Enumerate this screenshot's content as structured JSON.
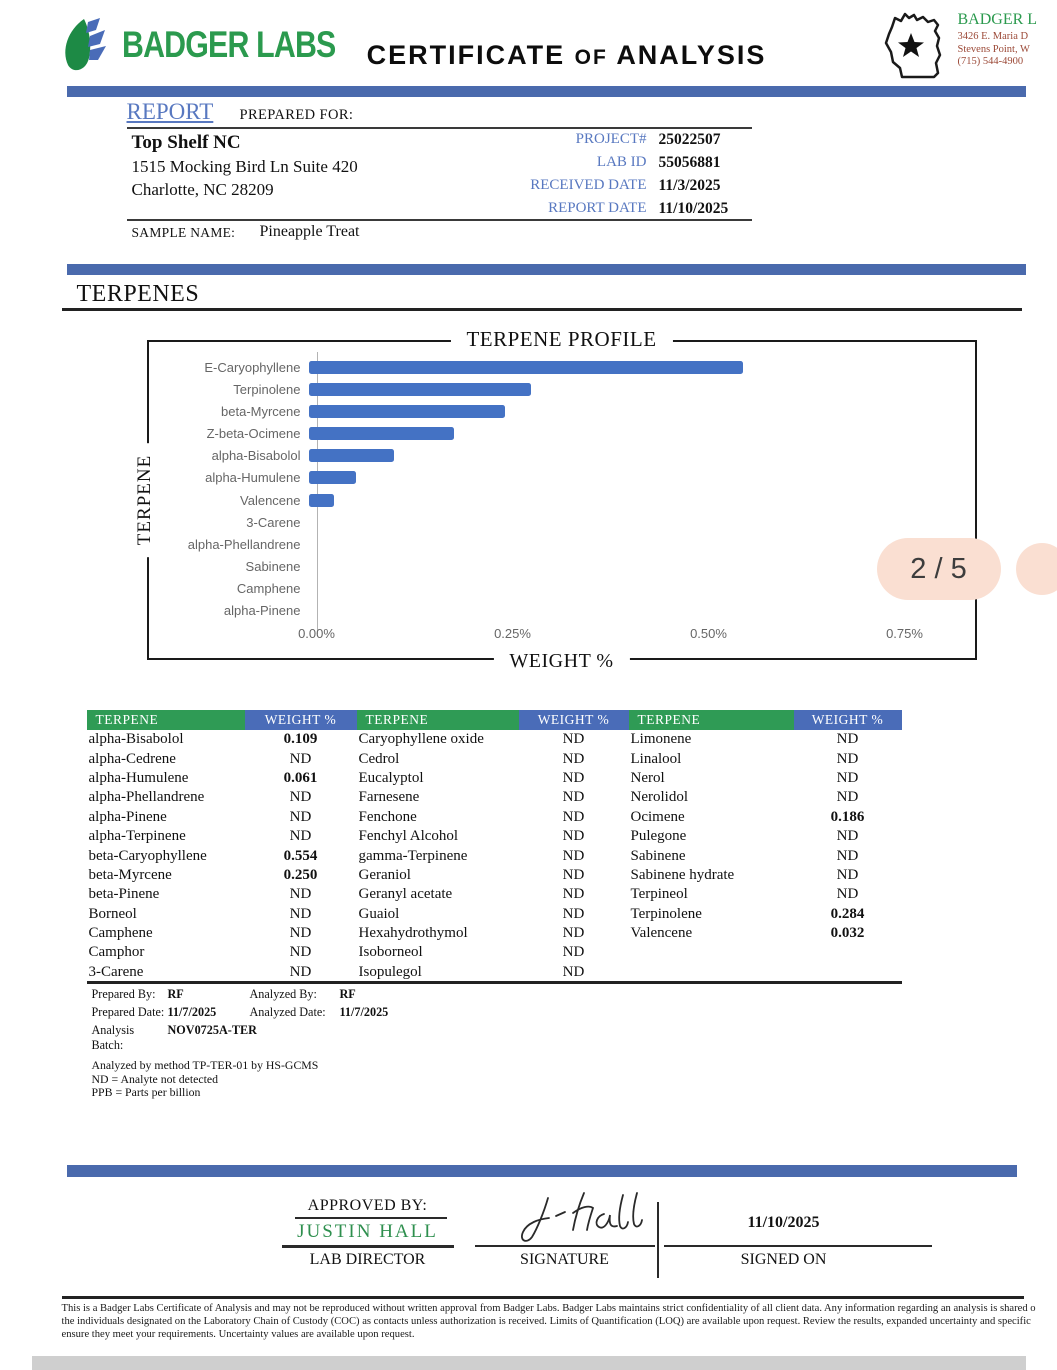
{
  "page": {
    "indicator": "2 / 5"
  },
  "header": {
    "logo_text": "BADGER LABS",
    "title_certificate": "CERTIFICATE",
    "title_of": "OF",
    "title_analysis": "ANALYSIS",
    "lab": {
      "name": "BADGER L",
      "address1": "3426 E. Maria D",
      "address2": "Stevens Point, W",
      "phone": "(715) 544-4900"
    }
  },
  "report": {
    "report_word": "REPORT",
    "prepared_for_label": "PREPARED FOR:",
    "client_name": "Top Shelf NC",
    "client_address1": "1515 Mocking Bird Ln Suite 420",
    "client_address2": "Charlotte, NC 28209",
    "fields": [
      {
        "label": "PROJECT#",
        "value": "25022507"
      },
      {
        "label": "LAB ID",
        "value": "55056881"
      },
      {
        "label": "RECEIVED DATE",
        "value": "11/3/2025"
      },
      {
        "label": "REPORT DATE",
        "value": "11/10/2025"
      }
    ],
    "sample_name_label": "SAMPLE NAME:",
    "sample_name": "Pineapple Treat"
  },
  "section_title": "TERPENES",
  "chart_data": {
    "type": "bar",
    "orientation": "horizontal",
    "title": "TERPENE PROFILE",
    "xlabel": "WEIGHT %",
    "ylabel": "TERPENE",
    "categories": [
      "E-Caryophyllene",
      "Terpinolene",
      "beta-Myrcene",
      "Z-beta-Ocimene",
      "alpha-Bisabolol",
      "alpha-Humulene",
      "Valencene",
      "3-Carene",
      "alpha-Phellandrene",
      "Sabinene",
      "Camphene",
      "alpha-Pinene"
    ],
    "values": [
      0.554,
      0.284,
      0.25,
      0.186,
      0.109,
      0.061,
      0.032,
      0,
      0,
      0,
      0,
      0
    ],
    "x_ticks": [
      "0.00%",
      "0.25%",
      "0.50%",
      "0.75%"
    ],
    "x_tick_values": [
      0,
      0.25,
      0.5,
      0.75
    ],
    "xlim": [
      0,
      0.84
    ],
    "grid": false,
    "bar_color": "#4472c4"
  },
  "table": {
    "groups": [
      {
        "name_header": "TERPENE",
        "value_header": "WEIGHT %",
        "rows": [
          [
            "alpha-Bisabolol",
            "0.109"
          ],
          [
            "alpha-Cedrene",
            "ND"
          ],
          [
            "alpha-Humulene",
            "0.061"
          ],
          [
            "alpha-Phellandrene",
            "ND"
          ],
          [
            "alpha-Pinene",
            "ND"
          ],
          [
            "alpha-Terpinene",
            "ND"
          ],
          [
            "beta-Caryophyllene",
            "0.554"
          ],
          [
            "beta-Myrcene",
            "0.250"
          ],
          [
            "beta-Pinene",
            "ND"
          ],
          [
            "Borneol",
            "ND"
          ],
          [
            "Camphene",
            "ND"
          ],
          [
            "Camphor",
            "ND"
          ],
          [
            "3-Carene",
            "ND"
          ]
        ]
      },
      {
        "name_header": "TERPENE",
        "value_header": "WEIGHT %",
        "rows": [
          [
            "Caryophyllene oxide",
            "ND"
          ],
          [
            "Cedrol",
            "ND"
          ],
          [
            "Eucalyptol",
            "ND"
          ],
          [
            "Farnesene",
            "ND"
          ],
          [
            "Fenchone",
            "ND"
          ],
          [
            "Fenchyl Alcohol",
            "ND"
          ],
          [
            "gamma-Terpinene",
            "ND"
          ],
          [
            "Geraniol",
            "ND"
          ],
          [
            "Geranyl acetate",
            "ND"
          ],
          [
            "Guaiol",
            "ND"
          ],
          [
            "Hexahydrothymol",
            "ND"
          ],
          [
            "Isoborneol",
            "ND"
          ],
          [
            "Isopulegol",
            "ND"
          ]
        ]
      },
      {
        "name_header": "TERPENE",
        "value_header": "WEIGHT %",
        "rows": [
          [
            "Limonene",
            "ND"
          ],
          [
            "Linalool",
            "ND"
          ],
          [
            "Nerol",
            "ND"
          ],
          [
            "Nerolidol",
            "ND"
          ],
          [
            "Ocimene",
            "0.186"
          ],
          [
            "Pulegone",
            "ND"
          ],
          [
            "Sabinene",
            "ND"
          ],
          [
            "Sabinene hydrate",
            "ND"
          ],
          [
            "Terpineol",
            "ND"
          ],
          [
            "Terpinolene",
            "0.284"
          ],
          [
            "Valencene",
            "0.032"
          ]
        ]
      }
    ]
  },
  "meta": {
    "prepared_by_label": "Prepared By:",
    "prepared_by": "RF",
    "analyzed_by_label": "Analyzed By:",
    "analyzed_by": "RF",
    "prepared_date_label": "Prepared Date:",
    "prepared_date": "11/7/2025",
    "analyzed_date_label": "Analyzed Date:",
    "analyzed_date": "11/7/2025",
    "analysis_batch_label": "Analysis Batch:",
    "analysis_batch": "NOV0725A-TER",
    "method_note": "Analyzed by method TP-TER-01 by HS-GCMS",
    "nd_note": "ND = Analyte not detected",
    "ppb_note": "PPB = Parts per billion"
  },
  "approval": {
    "approved_by_label": "APPROVED BY:",
    "approver_name": "JUSTIN HALL",
    "approver_title": "LAB DIRECTOR",
    "signature_label": "SIGNATURE",
    "signed_date": "11/10/2025",
    "signed_on_label": "SIGNED ON"
  },
  "footer_lines": [
    "This is a Badger Labs Certificate of Analysis and may not be reproduced without written approval from Badger Labs. Badger Labs maintains strict confidentiality of all client data. Any information regarding an analysis is shared o",
    "the individuals designated on the Laboratory Chain of Custody (COC) as contacts unless authorization is received. Limits of Quantification (LOQ) are available upon request. Review the results, expanded uncertainty and specific",
    "ensure they meet your requirements. Uncertainty values are available upon request."
  ],
  "colors": {
    "divider_blue": "#4a6aad",
    "table_header_blue": "#4a6cb8",
    "table_header_green": "#2f9b55",
    "accent_blue_text": "#5878c0",
    "brand_green": "#2b9a4e",
    "bar_blue": "#4472c4",
    "pill_bg": "#fadfd2",
    "address_red": "#9c4a38"
  }
}
